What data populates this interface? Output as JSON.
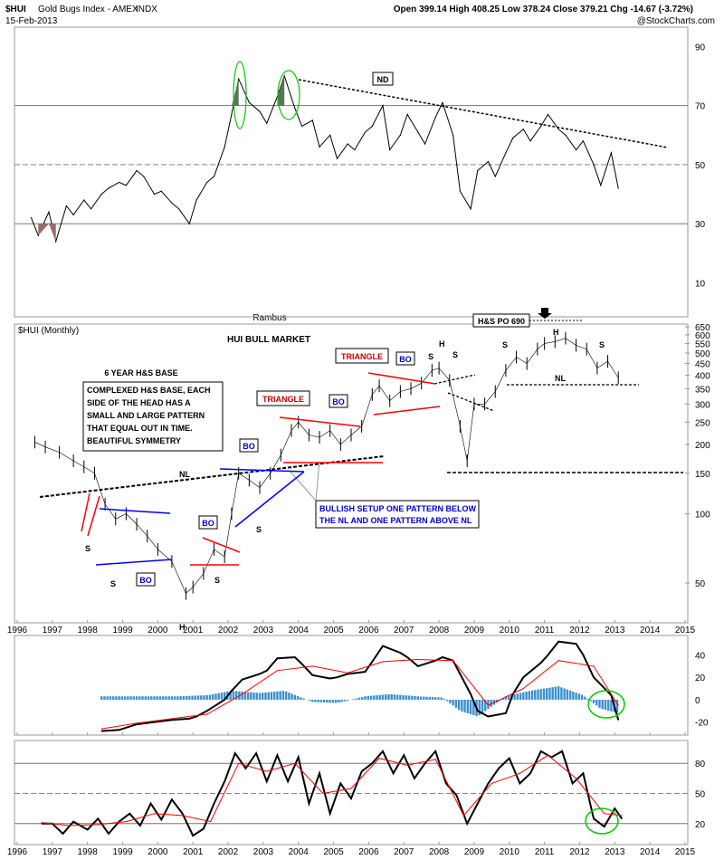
{
  "header": {
    "symbol": "$HUI",
    "name": "Gold Bugs Index - AMEX",
    "exchange": "INDX",
    "date": "15-Feb-2013",
    "ohlc": "Open 399.14  High 408.25  Low 378.24  Close 379.21  Chg -14.67 (-3.72%)",
    "watermark": "@StockCharts.com",
    "author": "Rambus"
  },
  "chart_data": [
    {
      "type": "line",
      "panel": "indicator-top",
      "ylim": [
        0,
        95
      ],
      "yticks": [
        10,
        30,
        50,
        70,
        90
      ],
      "x": [
        1996.4,
        1996.6,
        1996.9,
        1997.1,
        1997.4,
        1997.6,
        1997.9,
        1998.1,
        1998.4,
        1998.6,
        1998.9,
        1999.1,
        1999.4,
        1999.6,
        1999.9,
        2000.1,
        2000.4,
        2000.6,
        2000.9,
        2001.1,
        2001.4,
        2001.6,
        2001.9,
        2002.1,
        2002.3,
        2002.6,
        2002.9,
        2003.1,
        2003.4,
        2003.6,
        2003.9,
        2004.1,
        2004.4,
        2004.6,
        2004.9,
        2005.1,
        2005.4,
        2005.6,
        2005.9,
        2006.1,
        2006.4,
        2006.6,
        2006.9,
        2007.1,
        2007.4,
        2007.6,
        2007.9,
        2008.1,
        2008.4,
        2008.6,
        2008.9,
        2009.1,
        2009.4,
        2009.6,
        2009.9,
        2010.1,
        2010.4,
        2010.6,
        2010.9,
        2011.1,
        2011.4,
        2011.6,
        2011.9,
        2012.1,
        2012.4,
        2012.6,
        2012.9,
        2013.1
      ],
      "y": [
        32,
        26,
        34,
        24,
        36,
        33,
        38,
        35,
        40,
        42,
        44,
        43,
        48,
        46,
        40,
        41,
        37,
        35,
        30,
        38,
        44,
        46,
        56,
        67,
        79,
        71,
        68,
        64,
        73,
        80,
        69,
        63,
        65,
        56,
        60,
        52,
        57,
        55,
        61,
        63,
        70,
        55,
        60,
        67,
        61,
        57,
        66,
        71,
        60,
        41,
        35,
        48,
        51,
        46,
        54,
        59,
        62,
        58,
        63,
        67,
        62,
        60,
        55,
        58,
        50,
        43,
        54,
        42
      ],
      "overbought": 70,
      "oversold": 30,
      "midline": 50
    },
    {
      "type": "line",
      "panel": "price",
      "title": "HUI BULL MARKET",
      "series_label": "$HUI (Monthly)",
      "scale": "log",
      "yticks": [
        50,
        100,
        150,
        200,
        250,
        300,
        350,
        400,
        450,
        500,
        550,
        600,
        650
      ],
      "xticks": [
        "1996",
        "1997",
        "1998",
        "1999",
        "2000",
        "2001",
        "2002",
        "2003",
        "2004",
        "2005",
        "2006",
        "2007",
        "2008",
        "2009",
        "2010",
        "2011",
        "2012",
        "2013",
        "2014",
        "2015"
      ],
      "x": [
        1996.5,
        1996.8,
        1997.2,
        1997.6,
        1997.9,
        1998.2,
        1998.5,
        1998.8,
        1999.1,
        1999.4,
        1999.7,
        2000.0,
        2000.4,
        2000.8,
        2001.0,
        2001.3,
        2001.6,
        2001.9,
        2002.1,
        2002.3,
        2002.6,
        2002.9,
        2003.2,
        2003.5,
        2003.8,
        2004.0,
        2004.3,
        2004.6,
        2004.9,
        2005.2,
        2005.5,
        2005.8,
        2006.1,
        2006.3,
        2006.6,
        2006.9,
        2007.2,
        2007.5,
        2007.8,
        2008.0,
        2008.3,
        2008.6,
        2008.8,
        2009.0,
        2009.3,
        2009.6,
        2009.9,
        2010.2,
        2010.5,
        2010.8,
        2011.0,
        2011.3,
        2011.6,
        2011.9,
        2012.2,
        2012.5,
        2012.8,
        2013.1
      ],
      "y": [
        205,
        195,
        185,
        170,
        160,
        150,
        110,
        95,
        100,
        90,
        80,
        70,
        62,
        45,
        48,
        55,
        70,
        65,
        100,
        150,
        140,
        130,
        150,
        180,
        230,
        250,
        220,
        215,
        230,
        200,
        220,
        240,
        330,
        360,
        310,
        340,
        350,
        370,
        420,
        430,
        380,
        240,
        170,
        300,
        300,
        340,
        420,
        480,
        450,
        520,
        550,
        560,
        580,
        540,
        520,
        430,
        460,
        390
      ]
    },
    {
      "type": "line",
      "panel": "indicator-mid",
      "ylim": [
        -30,
        55
      ],
      "yticks": [
        -20,
        0,
        20,
        40
      ],
      "series": [
        {
          "name": "",
          "color": "#000000",
          "x": [
            1998.4,
            1998.9,
            1999.4,
            1999.9,
            2000.4,
            2000.9,
            2001.1,
            2001.4,
            2001.9,
            2002.1,
            2002.4,
            2002.9,
            2003.1,
            2003.4,
            2003.9,
            2004.1,
            2004.4,
            2004.9,
            2005.1,
            2005.4,
            2005.9,
            2006.1,
            2006.4,
            2006.9,
            2007.1,
            2007.4,
            2007.9,
            2008.1,
            2008.4,
            2008.9,
            2009.1,
            2009.4,
            2009.9,
            2010.1,
            2010.4,
            2010.9,
            2011.1,
            2011.4,
            2011.9,
            2012.1,
            2012.4,
            2012.9,
            2013.1
          ],
          "y": [
            -28,
            -27,
            -22,
            -20,
            -18,
            -17,
            -15,
            -10,
            0,
            8,
            18,
            23,
            26,
            37,
            38,
            32,
            22,
            19,
            20,
            23,
            25,
            34,
            48,
            42,
            38,
            30,
            35,
            38,
            35,
            5,
            -10,
            -15,
            -12,
            5,
            20,
            33,
            40,
            52,
            50,
            40,
            20,
            4,
            -18
          ]
        },
        {
          "name": "",
          "color": "#ff0000",
          "x": [
            1998.4,
            1999.4,
            2000.4,
            2001.4,
            2002.4,
            2003.4,
            2004.4,
            2005.4,
            2006.4,
            2007.4,
            2008.4,
            2009.4,
            2010.4,
            2011.4,
            2012.4,
            2013.1
          ],
          "y": [
            -26,
            -21,
            -17,
            -13,
            5,
            26,
            30,
            24,
            34,
            36,
            35,
            -5,
            10,
            35,
            30,
            -5
          ]
        }
      ],
      "histogram_x": [
        1998.4,
        1999.1,
        1999.9,
        2000.6,
        2001.4,
        2002.1,
        2002.9,
        2003.6,
        2004.4,
        2005.1,
        2005.9,
        2006.6,
        2007.4,
        2008.1,
        2008.6,
        2009.1,
        2009.9,
        2010.6,
        2011.4,
        2012.1,
        2012.6,
        2013.1
      ],
      "histogram_y": [
        3,
        3,
        3,
        3,
        4,
        8,
        6,
        8,
        -2,
        -3,
        3,
        5,
        3,
        2,
        -10,
        -15,
        3,
        8,
        12,
        4,
        -8,
        -12
      ]
    },
    {
      "type": "line",
      "panel": "indicator-bottom",
      "ylim": [
        0,
        100
      ],
      "yticks": [
        20,
        50,
        80
      ],
      "series": [
        {
          "name": "",
          "color": "#000000",
          "x": [
            1996.7,
            1997.0,
            1997.3,
            1997.6,
            1998.0,
            1998.3,
            1998.6,
            1998.9,
            1999.2,
            1999.5,
            1999.8,
            2000.1,
            2000.4,
            2000.7,
            2001.0,
            2001.3,
            2001.6,
            2001.9,
            2002.2,
            2002.5,
            2002.8,
            2003.1,
            2003.4,
            2003.7,
            2004.0,
            2004.3,
            2004.6,
            2004.9,
            2005.2,
            2005.5,
            2005.8,
            2006.1,
            2006.4,
            2006.7,
            2007.0,
            2007.3,
            2007.6,
            2007.9,
            2008.2,
            2008.5,
            2008.8,
            2009.1,
            2009.4,
            2009.7,
            2010.0,
            2010.3,
            2010.6,
            2010.9,
            2011.2,
            2011.5,
            2011.8,
            2012.1,
            2012.4,
            2012.7,
            2013.0,
            2013.2
          ],
          "y": [
            20,
            20,
            10,
            22,
            14,
            25,
            10,
            22,
            30,
            18,
            40,
            24,
            44,
            30,
            8,
            15,
            40,
            62,
            90,
            75,
            90,
            62,
            88,
            62,
            86,
            40,
            70,
            30,
            60,
            45,
            72,
            80,
            92,
            70,
            88,
            65,
            80,
            92,
            60,
            48,
            20,
            40,
            60,
            75,
            85,
            60,
            70,
            92,
            86,
            92,
            60,
            70,
            25,
            17,
            35,
            25
          ]
        },
        {
          "name": "",
          "color": "#ff0000",
          "x": [
            1996.7,
            1997.5,
            1998.3,
            1999.1,
            1999.9,
            2000.7,
            2001.5,
            2002.3,
            2003.1,
            2003.9,
            2004.7,
            2005.5,
            2006.3,
            2007.1,
            2007.9,
            2008.7,
            2009.5,
            2010.3,
            2011.1,
            2011.9,
            2012.7,
            2013.2
          ],
          "y": [
            21,
            18,
            19,
            22,
            30,
            28,
            22,
            80,
            72,
            80,
            50,
            55,
            85,
            78,
            84,
            28,
            60,
            70,
            88,
            65,
            30,
            28
          ]
        }
      ],
      "overbought": 80,
      "oversold": 20,
      "midline": 50
    }
  ],
  "annotations": {
    "nd_label": "ND",
    "hs_po_label": "H&S PO 690",
    "six_year_label": "6 YEAR H&S BASE",
    "base_text_1": "COMPLEXED H&S BASE, EACH",
    "base_text_2": "SIDE OF THE HEAD HAS A",
    "base_text_3": "SMALL AND LARGE PATTERN",
    "base_text_4": "THAT EQUAL OUT IN TIME.",
    "base_text_5": "BEAUTIFUL SYMMETRY",
    "triangle_1": "TRIANGLE",
    "triangle_2": "TRIANGLE",
    "bullish_1": "BULLISH SETUP ONE PATTERN BELOW",
    "bullish_2": "THE NL AND ONE PATTERN ABOVE NL",
    "nl": "NL",
    "bo": "BO",
    "s": "S",
    "h": "H"
  },
  "colors": {
    "price": "#000000",
    "red_line": "#ff0000",
    "blue_line": "#0000ff",
    "hist": "#3b8fd0",
    "ellipse": "#00cc00",
    "triangle_text": "#cc0000",
    "bo_text": "#0000cc"
  }
}
